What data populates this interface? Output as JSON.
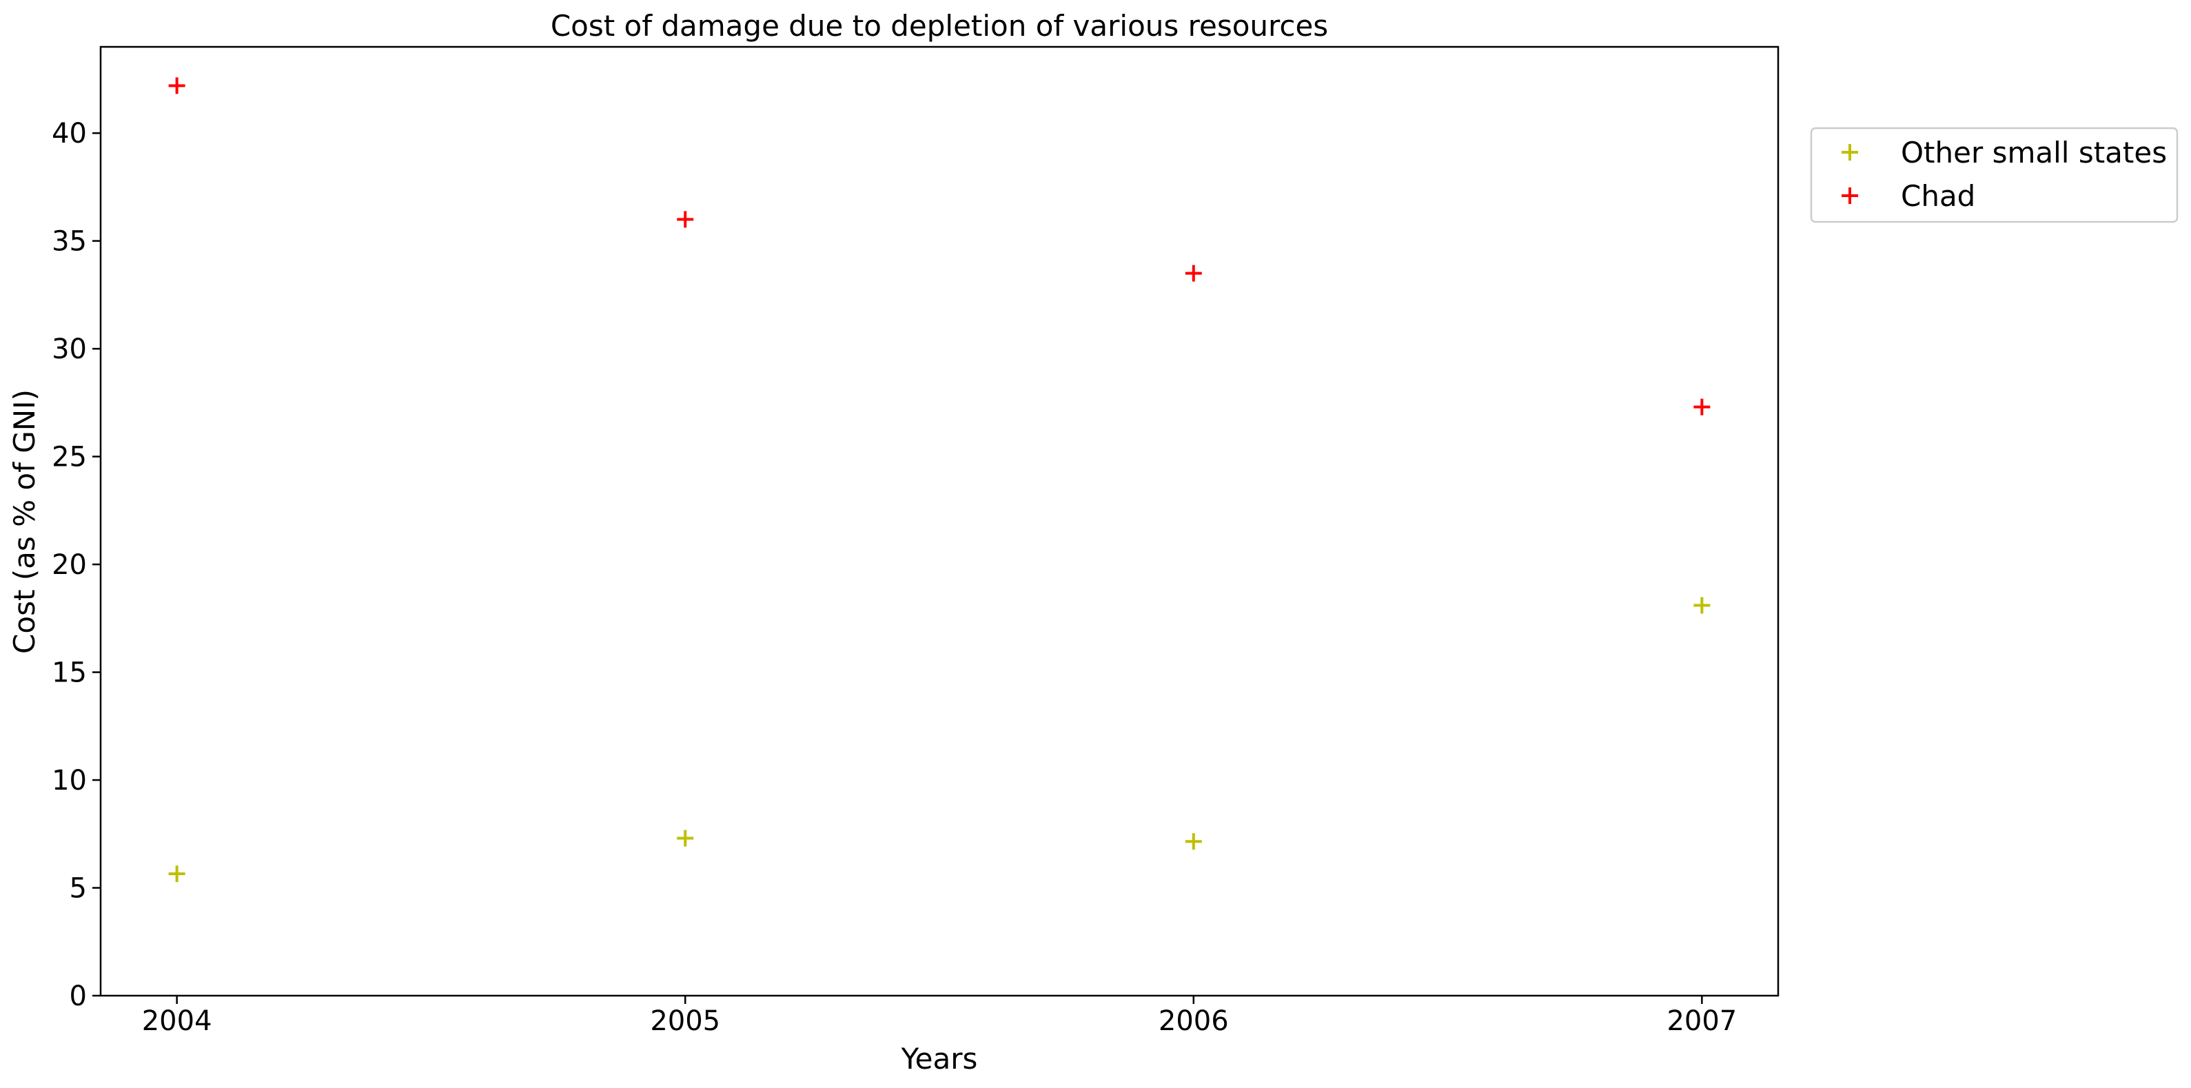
{
  "chart_data": {
    "type": "scatter",
    "title": "Cost of damage due to depletion of various resources",
    "xlabel": "Years",
    "ylabel": "Cost (as % of GNI)",
    "x": [
      "2004",
      "2005",
      "2006",
      "2007"
    ],
    "xlim": [
      2003.85,
      2007.15
    ],
    "ylim": [
      0,
      44
    ],
    "yticks": [
      0,
      5,
      10,
      15,
      20,
      25,
      30,
      35,
      40
    ],
    "ytick_labels": [
      "0",
      "5",
      "10",
      "15",
      "20",
      "25",
      "30",
      "35",
      "40"
    ],
    "grid": false,
    "legend_position": "outside-top-right",
    "marker": "plus",
    "series": [
      {
        "name": "Other small states",
        "color": "#bfbf00",
        "values": [
          5.65,
          7.3,
          7.15,
          18.1
        ]
      },
      {
        "name": "Chad",
        "color": "#ff0000",
        "values": [
          42.2,
          36.0,
          33.5,
          27.3
        ]
      }
    ]
  }
}
